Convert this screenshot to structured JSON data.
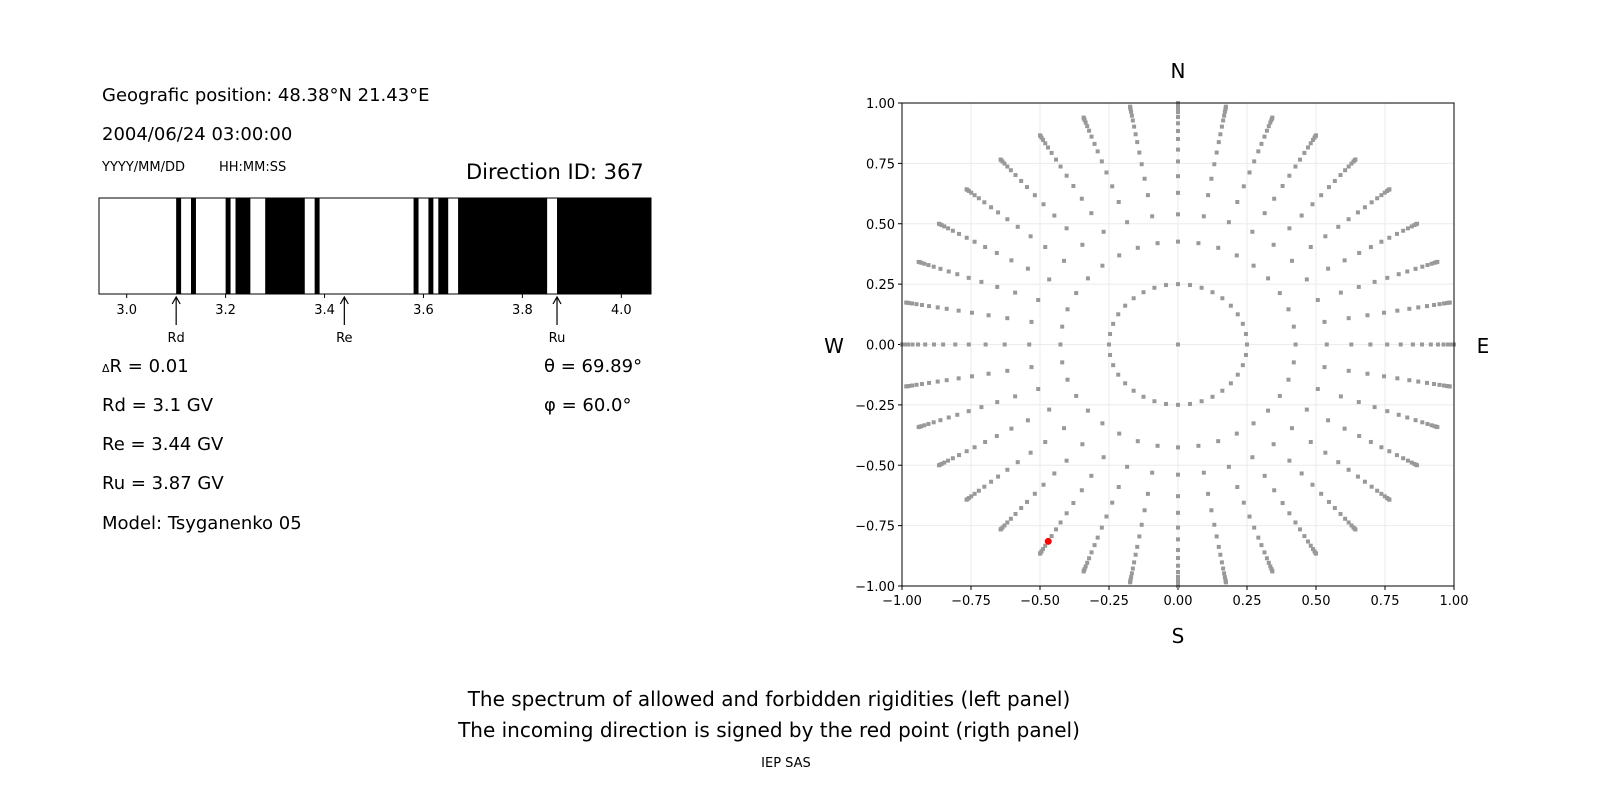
{
  "info": {
    "position": "Geografic position: 48.38°N 21.43°E",
    "datetime": "2004/06/24 03:00:00",
    "date_format": "YYYY/MM/DD",
    "time_format": "HH:MM:SS",
    "direction_id": "Direction ID: 367",
    "delta_r_symbol": "Δ",
    "delta_r": "R = 0.01",
    "rd": "Rd = 3.1 GV",
    "re": "Re = 3.44 GV",
    "ru": "Ru = 3.87 GV",
    "model": "Model: Tsyganenko 05",
    "theta": "θ = 69.89°",
    "phi": "φ = 60.0°"
  },
  "captions": {
    "line1": "The spectrum of allowed and forbidden rigidities (left panel)",
    "line2": "The incoming direction is signed by the red point (rigth panel)",
    "credit": "IEP SAS"
  },
  "chart_data": [
    {
      "type": "bar",
      "xlim": [
        2.944,
        4.06
      ],
      "xticks": [
        "3.0",
        "3.2",
        "3.4",
        "3.6",
        "3.8",
        "4.0"
      ],
      "forbidden_bands_black": [
        [
          3.1,
          3.11
        ],
        [
          3.13,
          3.14
        ],
        [
          3.2,
          3.21
        ],
        [
          3.22,
          3.25
        ],
        [
          3.28,
          3.36
        ],
        [
          3.38,
          3.39
        ],
        [
          3.58,
          3.59
        ],
        [
          3.61,
          3.62
        ],
        [
          3.63,
          3.65
        ],
        [
          3.67,
          3.85
        ],
        [
          3.87,
          4.06
        ]
      ],
      "markers": [
        {
          "label": "Rd",
          "value": 3.1
        },
        {
          "label": "Re",
          "value": 3.44
        },
        {
          "label": "Ru",
          "value": 3.87
        }
      ],
      "colors": {
        "forbidden": "#000000",
        "allowed": "#ffffff"
      }
    },
    {
      "type": "scatter",
      "xlim": [
        -1,
        1
      ],
      "ylim": [
        -1,
        1
      ],
      "xticks": [
        "−1.00",
        "−0.75",
        "−0.50",
        "−0.25",
        "0.00",
        "0.25",
        "0.50",
        "0.75",
        "1.00"
      ],
      "yticks": [
        "−1.00",
        "−0.75",
        "−0.50",
        "−0.25",
        "0.00",
        "0.25",
        "0.50",
        "0.75",
        "1.00"
      ],
      "grid": true,
      "compass": {
        "n": "N",
        "s": "S",
        "w": "W",
        "e": "E"
      },
      "grid_radii": [
        0,
        0.25,
        0.426,
        0.539,
        0.628,
        0.697,
        0.758,
        0.807,
        0.851,
        0.884,
        0.916,
        0.942,
        0.962,
        0.978,
        0.989,
        0.996,
        1.0
      ],
      "azimuth_step_deg": 10,
      "point_color": "#999999",
      "highlight": {
        "x": -0.47,
        "y": -0.815,
        "color": "#ff0000"
      }
    }
  ]
}
